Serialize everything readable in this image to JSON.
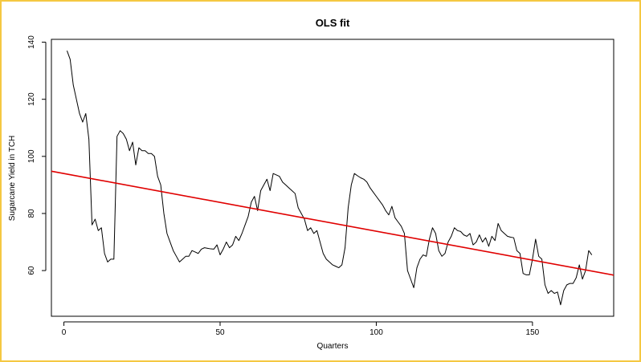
{
  "chart_data": {
    "type": "line",
    "title": "OLS fit",
    "xlabel": "Quarters",
    "ylabel": "Sugarcane Yield in TCH",
    "xlim": [
      -4,
      176
    ],
    "ylim": [
      44,
      141
    ],
    "xticks": [
      0,
      50,
      100,
      150
    ],
    "yticks": [
      60,
      80,
      100,
      120,
      140
    ],
    "grid": false,
    "series": [
      {
        "color": "#000000",
        "x": [
          1,
          2,
          3,
          4,
          5,
          6,
          7,
          8,
          9,
          10,
          11,
          12,
          13,
          14,
          15,
          16,
          17,
          18,
          19,
          20,
          21,
          22,
          23,
          24,
          25,
          26,
          27,
          28,
          29,
          30,
          31,
          32,
          33,
          34,
          35,
          36,
          37,
          38,
          39,
          40,
          41,
          42,
          43,
          44,
          45,
          46,
          47,
          48,
          49,
          50,
          51,
          52,
          53,
          54,
          55,
          56,
          57,
          58,
          59,
          60,
          61,
          62,
          63,
          64,
          65,
          66,
          67,
          68,
          69,
          70,
          71,
          72,
          73,
          74,
          75,
          76,
          77,
          78,
          79,
          80,
          81,
          82,
          83,
          84,
          85,
          86,
          87,
          88,
          89,
          90,
          91,
          92,
          93,
          94,
          95,
          96,
          97,
          98,
          99,
          100,
          101,
          102,
          103,
          104,
          105,
          106,
          107,
          108,
          109,
          110,
          111,
          112,
          113,
          114,
          115,
          116,
          117,
          118,
          119,
          120,
          121,
          122,
          123,
          124,
          125,
          126,
          127,
          128,
          129,
          130,
          131,
          132,
          133,
          134,
          135,
          136,
          137,
          138,
          139,
          140,
          141,
          142,
          143,
          144,
          145,
          146,
          147,
          148,
          149,
          150,
          151,
          152,
          153,
          154,
          155,
          156,
          157,
          158,
          159,
          160,
          161,
          162,
          163,
          164,
          165,
          166,
          167,
          168,
          169
        ],
        "y": [
          137,
          134,
          125,
          120,
          115,
          112,
          115,
          106,
          76,
          78,
          74,
          75,
          66,
          63,
          64,
          64,
          107,
          109,
          108,
          106,
          102,
          105,
          97,
          103,
          102,
          102,
          101,
          101,
          100,
          93,
          90,
          80,
          73,
          70,
          67,
          65,
          63,
          64,
          65,
          65,
          67,
          66.5,
          66,
          67.5,
          68,
          67.8,
          67.6,
          67.5,
          69,
          65.5,
          67.5,
          70,
          68,
          69,
          72,
          70.5,
          73,
          76,
          79,
          84,
          86,
          81,
          88,
          90,
          92,
          88,
          94,
          93.5,
          93,
          91,
          90,
          89,
          88,
          87,
          82,
          80,
          78,
          74,
          75,
          73,
          74,
          70,
          66,
          64,
          63,
          62,
          61.5,
          61,
          62,
          68,
          82,
          90,
          94,
          93.2,
          92.5,
          92,
          91,
          89,
          87.5,
          86,
          84.5,
          83,
          81,
          79.5,
          82.5,
          78.5,
          77,
          75.5,
          73,
          60,
          57,
          54,
          61,
          64,
          65.5,
          65,
          71,
          75,
          73,
          67,
          65,
          66,
          70,
          72,
          75,
          74,
          73.7,
          72.5,
          72,
          73,
          69,
          70,
          72.5,
          70,
          71.5,
          68.5,
          72,
          70.5,
          76.5,
          74,
          73,
          72,
          71.7,
          71.5,
          67,
          66,
          59,
          58.5,
          58.5,
          64,
          71,
          65,
          64,
          55,
          52,
          53,
          52,
          52.5,
          48,
          53,
          55,
          55.5,
          55.5,
          57.5,
          62,
          57,
          60,
          67,
          65.5
        ]
      },
      {
        "color": "#e00000",
        "x": [
          -4,
          176
        ],
        "y": [
          94.8,
          58.4
        ]
      }
    ]
  }
}
